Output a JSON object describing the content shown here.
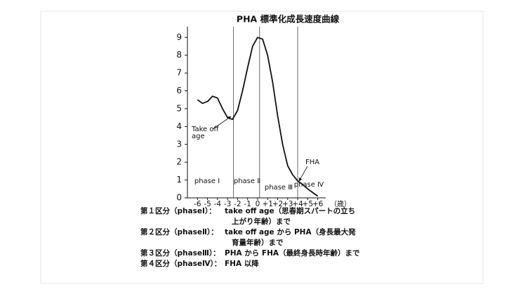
{
  "chart_data": {
    "type": "line",
    "title": "PHA 標準化成長速度曲線",
    "x_label": "（歳）",
    "x": [
      -6,
      -5.5,
      -5,
      -4.5,
      -4,
      -3.5,
      -3,
      -2.5,
      -2,
      -1.5,
      -1,
      -0.5,
      0,
      0.5,
      1,
      1.5,
      2,
      2.5,
      3,
      3.5,
      4,
      4.5,
      5,
      5.5,
      6
    ],
    "series": [
      {
        "color": "#111111",
        "values": [
          5.5,
          5.3,
          5.4,
          5.7,
          5.6,
          5.0,
          4.5,
          4.4,
          4.9,
          6.0,
          7.3,
          8.5,
          9.0,
          8.9,
          8.0,
          6.5,
          4.6,
          3.0,
          1.8,
          1.3,
          0.95,
          0.75,
          0.5,
          0.3,
          0.1
        ]
      }
    ],
    "xlim": [
      -7,
      6.8
    ],
    "ylim": [
      0,
      9.6
    ],
    "xticks": [
      -6,
      -5,
      -4,
      -3,
      -2,
      -1,
      0,
      {
        "value": 1,
        "label": "+1"
      },
      {
        "value": 2,
        "label": "+2"
      },
      {
        "value": 3,
        "label": "+3"
      },
      {
        "value": 4,
        "label": "+4"
      },
      {
        "value": 5,
        "label": "+5"
      },
      {
        "value": 6,
        "label": "+6"
      }
    ],
    "yticks": [
      0,
      1,
      2,
      3,
      4,
      5,
      6,
      7,
      8,
      9
    ],
    "phase_lines": [
      -2.4,
      0.2,
      4
    ],
    "phases": [
      "phase Ⅰ",
      "phase Ⅱ",
      "phase Ⅲ",
      "phase Ⅳ"
    ],
    "annotations": [
      [
        "Take off",
        "age"
      ],
      [
        "FHA"
      ]
    ],
    "notes": [
      {
        "term": "第１区分（phaseⅠ）：",
        "lines": [
          "take off age（思春期スパートの立ち",
          "上がり年齢）まで"
        ]
      },
      {
        "term": "第２区分（phaseⅡ）：",
        "lines": [
          "take off age から PHA（身長最大発",
          "育量年齢）まで"
        ]
      },
      {
        "term": "第３区分（phaseⅢ）：",
        "lines": [
          "PHA から FHA（最終身長時年齢）まで"
        ]
      },
      {
        "term": "第４区分（phaseⅣ）：",
        "lines": [
          "FHA 以降"
        ]
      }
    ]
  }
}
